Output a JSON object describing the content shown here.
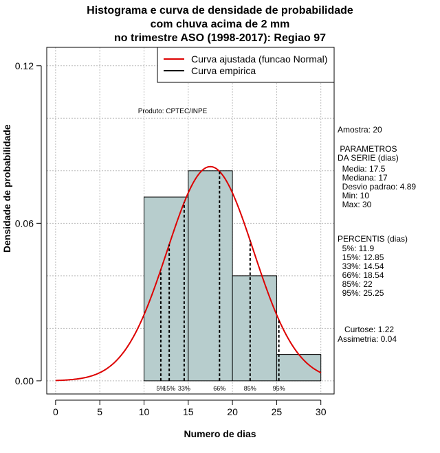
{
  "chart_data": {
    "type": "bar",
    "title_lines": [
      "Histograma e curva de densidade de probabilidade",
      "com chuva acima de 2 mm",
      "no trimestre ASO (1998-2017): Regiao 97"
    ],
    "xlabel": "Numero de dias",
    "ylabel": "Densidade de probabilidade",
    "xlim": [
      -1,
      31.5
    ],
    "ylim": [
      -0.005,
      0.127
    ],
    "x_ticks": [
      0,
      5,
      10,
      15,
      20,
      25,
      30
    ],
    "x_tick_labels": [
      "0",
      "5",
      "10",
      "15",
      "20",
      "25",
      "30"
    ],
    "y_ticks": [
      0.0,
      0.06,
      0.12
    ],
    "y_tick_labels": [
      "0.00",
      "0.06",
      "0.12"
    ],
    "grid": true,
    "colors": {
      "bars": "#b7cdcd",
      "curve": "#dd0000",
      "grid": "#bbbbbb"
    },
    "histogram": {
      "bin_edges": [
        10,
        15,
        20,
        25,
        30
      ],
      "densities": [
        0.07,
        0.08,
        0.04,
        0.01
      ]
    },
    "normal_curve": {
      "name": "Curva ajustada (funcao Normal)",
      "mean": 17.5,
      "sd": 4.89,
      "x_range": [
        0,
        30
      ]
    },
    "legend": {
      "position": "top-right",
      "entries": [
        {
          "label": "Curva ajustada (funcao Normal)",
          "color": "#dd0000"
        },
        {
          "label": "Curva empirica",
          "color": "#000000"
        }
      ]
    },
    "percentile_lines": [
      {
        "label": "5%",
        "x": 11.9
      },
      {
        "label": "15%",
        "x": 12.85
      },
      {
        "label": "33%",
        "x": 14.54
      },
      {
        "label": "66%",
        "x": 18.54
      },
      {
        "label": "85%",
        "x": 22
      },
      {
        "label": "95%",
        "x": 25.25
      }
    ],
    "annotation": "Produto: CPTEC/INPE"
  },
  "stats": {
    "amostra": "Amostra: 20",
    "parametros_header": " PARAMETROS\nDA SERIE (dias)",
    "parametros": "  Media: 17.5\n  Mediana: 17\n  Desvio padrao: 4.89\n  Min: 10\n  Max: 30",
    "percentis_header": "PERCENTIS (dias)",
    "percentis": "  5%: 11.9\n  15%: 12.85\n  33%: 14.54\n  66%: 18.54\n  85%: 22\n  95%: 25.25",
    "curtose": "   Curtose: 1.22",
    "assimetria": "Assimetria: 0.04"
  }
}
